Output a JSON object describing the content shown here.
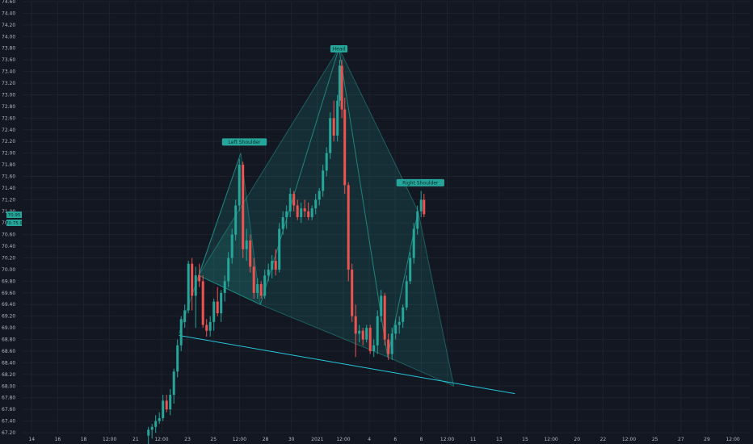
{
  "chart_data": {
    "type": "candlestick",
    "background": "#131722",
    "colors": {
      "up": "#26a69a",
      "down": "#ef5350",
      "grid": "#1e222d",
      "axis_text": "#b2b5be",
      "pattern_fill": "#26a69a",
      "trendline": "#26c6da",
      "label_bg": "#26a69a"
    },
    "y_axis": {
      "ticks": [
        "67.20",
        "67.40",
        "67.60",
        "67.80",
        "68.00",
        "68.20",
        "68.40",
        "68.60",
        "68.80",
        "69.00",
        "69.20",
        "69.40",
        "69.60",
        "69.80",
        "70.00",
        "70.20",
        "70.40",
        "70.60",
        "70.80",
        "71.00",
        "71.20",
        "71.40",
        "71.60",
        "71.80",
        "72.00",
        "72.20",
        "72.40",
        "72.60",
        "72.80",
        "73.00",
        "73.20",
        "73.40",
        "73.60",
        "73.80",
        "74.00",
        "74.20",
        "74.40",
        "74.60"
      ],
      "range": [
        67.2,
        74.6
      ],
      "side": "left"
    },
    "x_axis": {
      "ticks": [
        "14",
        "16",
        "18",
        "12:00",
        "21",
        "12:00",
        "23",
        "25",
        "12:00",
        "28",
        "30",
        "2021",
        "12:00",
        "4",
        "6",
        "8",
        "12:00",
        "11",
        "13",
        "15",
        "12:00",
        "20",
        "22",
        "12:00",
        "25",
        "27",
        "29",
        "12:00"
      ],
      "range": [
        0,
        100
      ]
    },
    "price_labels": [
      "70.95",
      "70.75.9"
    ],
    "annotations": [
      {
        "text": "Left Shoulder",
        "x": 30.5,
        "y": 72.1
      },
      {
        "text": "Head",
        "x": 43.5,
        "y": 73.7
      },
      {
        "text": "Right Shoulder",
        "x": 54.7,
        "y": 71.4
      }
    ],
    "patterns": [
      {
        "name": "pattern-xa",
        "points": [
          [
            21.5,
            68.9
          ],
          [
            24.2,
            69.9
          ],
          [
            30.0,
            72.0
          ]
        ]
      },
      {
        "name": "pattern-ab",
        "points": [
          [
            24.2,
            69.9
          ],
          [
            30.0,
            72.0
          ],
          [
            32.7,
            69.4
          ]
        ]
      },
      {
        "name": "pattern-bc",
        "points": [
          [
            24.2,
            69.9
          ],
          [
            32.7,
            69.4
          ],
          [
            43.5,
            73.8
          ]
        ]
      },
      {
        "name": "pattern-cd",
        "points": [
          [
            32.7,
            69.4
          ],
          [
            43.5,
            73.8
          ],
          [
            50.2,
            68.5
          ]
        ]
      },
      {
        "name": "pattern-de",
        "points": [
          [
            43.5,
            73.8
          ],
          [
            50.2,
            68.5
          ],
          [
            54.4,
            71.0
          ]
        ]
      },
      {
        "name": "pattern-ef",
        "points": [
          [
            50.2,
            68.5
          ],
          [
            54.4,
            71.0
          ],
          [
            59.3,
            68.0
          ]
        ]
      }
    ],
    "neckline": [
      [
        21.5,
        68.87
      ],
      [
        67.7,
        67.87
      ]
    ],
    "candles": [
      {
        "x": 17.3,
        "o": 67.15,
        "h": 67.3,
        "l": 67.0,
        "c": 67.25
      },
      {
        "x": 17.8,
        "o": 67.25,
        "h": 67.35,
        "l": 67.1,
        "c": 67.3
      },
      {
        "x": 18.3,
        "o": 67.3,
        "h": 67.5,
        "l": 67.2,
        "c": 67.4
      },
      {
        "x": 18.8,
        "o": 67.4,
        "h": 67.55,
        "l": 67.35,
        "c": 67.45
      },
      {
        "x": 19.3,
        "o": 67.45,
        "h": 67.85,
        "l": 67.4,
        "c": 67.75
      },
      {
        "x": 19.8,
        "o": 67.75,
        "h": 67.85,
        "l": 67.55,
        "c": 67.6
      },
      {
        "x": 20.3,
        "o": 67.6,
        "h": 67.95,
        "l": 67.5,
        "c": 67.85
      },
      {
        "x": 20.8,
        "o": 67.85,
        "h": 68.3,
        "l": 67.7,
        "c": 68.25
      },
      {
        "x": 21.3,
        "o": 68.25,
        "h": 68.8,
        "l": 68.15,
        "c": 68.7
      },
      {
        "x": 21.8,
        "o": 68.7,
        "h": 69.2,
        "l": 68.6,
        "c": 69.15
      },
      {
        "x": 22.3,
        "o": 69.1,
        "h": 69.4,
        "l": 69.0,
        "c": 69.3
      },
      {
        "x": 22.8,
        "o": 69.3,
        "h": 70.15,
        "l": 69.25,
        "c": 70.1
      },
      {
        "x": 23.3,
        "o": 70.1,
        "h": 70.2,
        "l": 69.3,
        "c": 69.55
      },
      {
        "x": 23.8,
        "o": 69.55,
        "h": 70.05,
        "l": 69.0,
        "c": 69.9
      },
      {
        "x": 24.3,
        "o": 69.9,
        "h": 70.1,
        "l": 69.7,
        "c": 69.8
      },
      {
        "x": 24.8,
        "o": 69.8,
        "h": 69.9,
        "l": 69.0,
        "c": 69.05
      },
      {
        "x": 25.3,
        "o": 69.05,
        "h": 69.15,
        "l": 68.85,
        "c": 68.95
      },
      {
        "x": 25.8,
        "o": 68.95,
        "h": 69.2,
        "l": 68.85,
        "c": 69.1
      },
      {
        "x": 26.3,
        "o": 69.1,
        "h": 69.5,
        "l": 68.95,
        "c": 69.45
      },
      {
        "x": 26.8,
        "o": 69.45,
        "h": 69.7,
        "l": 69.2,
        "c": 69.25
      },
      {
        "x": 27.3,
        "o": 69.25,
        "h": 69.65,
        "l": 69.1,
        "c": 69.6
      },
      {
        "x": 27.8,
        "o": 69.6,
        "h": 69.9,
        "l": 69.45,
        "c": 69.8
      },
      {
        "x": 28.3,
        "o": 69.8,
        "h": 70.3,
        "l": 69.7,
        "c": 70.2
      },
      {
        "x": 28.8,
        "o": 70.2,
        "h": 70.7,
        "l": 70.1,
        "c": 70.6
      },
      {
        "x": 29.3,
        "o": 70.6,
        "h": 71.2,
        "l": 70.5,
        "c": 71.1
      },
      {
        "x": 29.8,
        "o": 71.1,
        "h": 71.9,
        "l": 71.0,
        "c": 71.8
      },
      {
        "x": 30.3,
        "o": 71.8,
        "h": 71.85,
        "l": 70.2,
        "c": 70.35
      },
      {
        "x": 30.8,
        "o": 70.35,
        "h": 70.7,
        "l": 70.15,
        "c": 70.5
      },
      {
        "x": 31.3,
        "o": 70.5,
        "h": 70.6,
        "l": 69.95,
        "c": 70.05
      },
      {
        "x": 31.8,
        "o": 70.05,
        "h": 70.2,
        "l": 69.5,
        "c": 69.6
      },
      {
        "x": 32.3,
        "o": 69.6,
        "h": 69.85,
        "l": 69.5,
        "c": 69.75
      },
      {
        "x": 32.8,
        "o": 69.75,
        "h": 69.8,
        "l": 69.5,
        "c": 69.55
      },
      {
        "x": 33.3,
        "o": 69.55,
        "h": 70.0,
        "l": 69.5,
        "c": 69.9
      },
      {
        "x": 33.8,
        "o": 69.9,
        "h": 70.1,
        "l": 69.8,
        "c": 70.0
      },
      {
        "x": 34.3,
        "o": 70.0,
        "h": 70.25,
        "l": 69.85,
        "c": 70.15
      },
      {
        "x": 34.8,
        "o": 70.15,
        "h": 70.35,
        "l": 69.9,
        "c": 70.0
      },
      {
        "x": 35.3,
        "o": 70.0,
        "h": 70.8,
        "l": 69.95,
        "c": 70.7
      },
      {
        "x": 35.8,
        "o": 70.7,
        "h": 71.0,
        "l": 70.6,
        "c": 70.9
      },
      {
        "x": 36.3,
        "o": 70.9,
        "h": 71.1,
        "l": 70.7,
        "c": 71.0
      },
      {
        "x": 36.8,
        "o": 71.0,
        "h": 71.4,
        "l": 70.9,
        "c": 71.3
      },
      {
        "x": 37.3,
        "o": 71.3,
        "h": 71.35,
        "l": 71.0,
        "c": 71.1
      },
      {
        "x": 37.8,
        "o": 71.1,
        "h": 71.2,
        "l": 70.85,
        "c": 70.9
      },
      {
        "x": 38.3,
        "o": 70.9,
        "h": 71.15,
        "l": 70.8,
        "c": 71.05
      },
      {
        "x": 38.8,
        "o": 71.05,
        "h": 71.2,
        "l": 70.9,
        "c": 71.0
      },
      {
        "x": 39.3,
        "o": 71.0,
        "h": 71.15,
        "l": 70.85,
        "c": 70.9
      },
      {
        "x": 39.8,
        "o": 70.9,
        "h": 71.1,
        "l": 70.85,
        "c": 71.05
      },
      {
        "x": 40.3,
        "o": 71.05,
        "h": 71.3,
        "l": 70.95,
        "c": 71.2
      },
      {
        "x": 40.8,
        "o": 71.2,
        "h": 71.4,
        "l": 71.1,
        "c": 71.35
      },
      {
        "x": 41.3,
        "o": 71.35,
        "h": 71.8,
        "l": 71.25,
        "c": 71.7
      },
      {
        "x": 41.8,
        "o": 71.7,
        "h": 72.1,
        "l": 71.6,
        "c": 72.0
      },
      {
        "x": 42.3,
        "o": 72.0,
        "h": 72.7,
        "l": 71.9,
        "c": 72.6
      },
      {
        "x": 42.8,
        "o": 72.6,
        "h": 72.9,
        "l": 72.2,
        "c": 72.3
      },
      {
        "x": 43.3,
        "o": 72.3,
        "h": 73.0,
        "l": 72.2,
        "c": 72.9
      },
      {
        "x": 43.6,
        "o": 72.9,
        "h": 73.6,
        "l": 72.8,
        "c": 73.5
      },
      {
        "x": 43.9,
        "o": 73.5,
        "h": 73.6,
        "l": 72.6,
        "c": 72.75
      },
      {
        "x": 44.3,
        "o": 72.75,
        "h": 72.95,
        "l": 71.3,
        "c": 71.45
      },
      {
        "x": 44.8,
        "o": 71.45,
        "h": 71.5,
        "l": 69.8,
        "c": 70.0
      },
      {
        "x": 45.3,
        "o": 70.0,
        "h": 70.1,
        "l": 69.1,
        "c": 69.2
      },
      {
        "x": 45.8,
        "o": 69.2,
        "h": 69.4,
        "l": 68.5,
        "c": 68.9
      },
      {
        "x": 46.3,
        "o": 68.9,
        "h": 69.05,
        "l": 68.75,
        "c": 68.95
      },
      {
        "x": 46.8,
        "o": 68.95,
        "h": 69.0,
        "l": 68.7,
        "c": 68.8
      },
      {
        "x": 47.3,
        "o": 68.8,
        "h": 69.05,
        "l": 68.75,
        "c": 69.0
      },
      {
        "x": 47.8,
        "o": 69.0,
        "h": 69.05,
        "l": 68.55,
        "c": 68.6
      },
      {
        "x": 48.3,
        "o": 68.6,
        "h": 68.8,
        "l": 68.5,
        "c": 68.7
      },
      {
        "x": 48.8,
        "o": 68.7,
        "h": 69.3,
        "l": 68.55,
        "c": 69.2
      },
      {
        "x": 49.3,
        "o": 69.2,
        "h": 69.65,
        "l": 69.1,
        "c": 69.55
      },
      {
        "x": 49.8,
        "o": 69.55,
        "h": 69.6,
        "l": 68.7,
        "c": 68.8
      },
      {
        "x": 50.3,
        "o": 68.8,
        "h": 68.9,
        "l": 68.45,
        "c": 68.55
      },
      {
        "x": 50.8,
        "o": 68.55,
        "h": 69.0,
        "l": 68.45,
        "c": 68.9
      },
      {
        "x": 51.3,
        "o": 68.9,
        "h": 69.15,
        "l": 68.8,
        "c": 69.05
      },
      {
        "x": 51.8,
        "o": 69.05,
        "h": 69.2,
        "l": 68.9,
        "c": 69.1
      },
      {
        "x": 52.3,
        "o": 69.1,
        "h": 69.4,
        "l": 69.0,
        "c": 69.35
      },
      {
        "x": 52.8,
        "o": 69.35,
        "h": 69.9,
        "l": 69.3,
        "c": 69.8
      },
      {
        "x": 53.3,
        "o": 69.8,
        "h": 70.3,
        "l": 69.75,
        "c": 70.2
      },
      {
        "x": 53.8,
        "o": 70.2,
        "h": 70.8,
        "l": 70.1,
        "c": 70.7
      },
      {
        "x": 54.3,
        "o": 70.7,
        "h": 71.1,
        "l": 70.6,
        "c": 71.0
      },
      {
        "x": 54.8,
        "o": 71.0,
        "h": 71.35,
        "l": 70.9,
        "c": 71.2
      },
      {
        "x": 55.2,
        "o": 71.2,
        "h": 71.3,
        "l": 70.9,
        "c": 70.95
      }
    ]
  }
}
